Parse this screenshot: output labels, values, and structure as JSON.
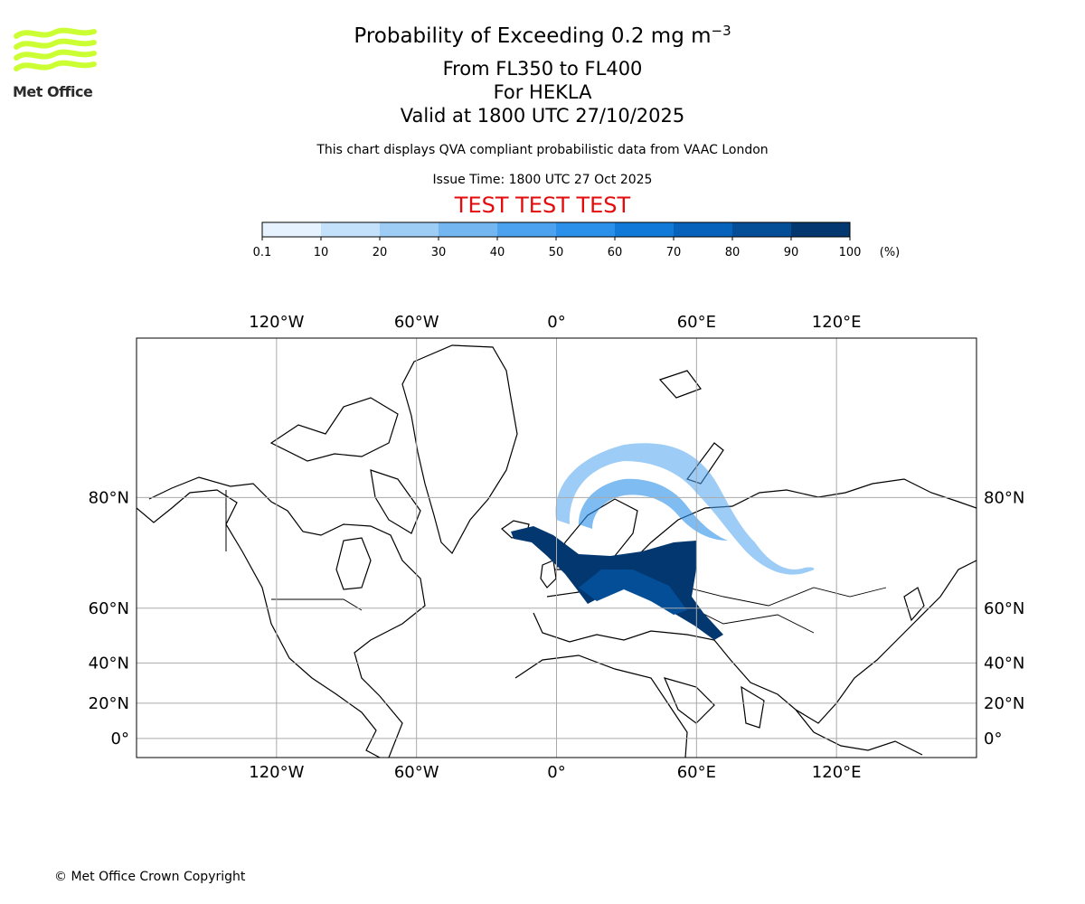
{
  "header": {
    "title_main": "Probability of Exceeding 0.2 mg m",
    "title_sup": "−3",
    "flight_levels": "From FL350 to FL400",
    "volcano": "For HEKLA",
    "valid": "Valid at 1800 UTC 27/10/2025",
    "note": "This chart displays QVA compliant probabilistic data from VAAC London",
    "issue_time": "Issue Time: 1800 UTC 27 Oct 2025",
    "test_banner": "TEST TEST TEST"
  },
  "logo": {
    "text": "Met Office",
    "color": "#ccff33"
  },
  "footer": {
    "copyright": "© Met Office Crown Copyright"
  },
  "legend": {
    "unit": "(%)",
    "ticks": [
      "0.1",
      "10",
      "20",
      "30",
      "40",
      "50",
      "60",
      "70",
      "80",
      "90",
      "100"
    ],
    "colors": [
      "#e6f2ff",
      "#c3e1fb",
      "#9dcdf5",
      "#74b6f0",
      "#4ca2ee",
      "#2a90ea",
      "#117ad8",
      "#0662bb",
      "#034e96",
      "#023770"
    ]
  },
  "map": {
    "lon_ticks_top": [
      "120°W",
      "60°W",
      "0°",
      "60°E",
      "120°E"
    ],
    "lon_ticks_bottom": [
      "120°W",
      "60°W",
      "0°",
      "60°E",
      "120°E"
    ],
    "lat_ticks_left": [
      "80°N",
      "60°N",
      "40°N",
      "20°N",
      "0°"
    ],
    "lat_ticks_right": [
      "80°N",
      "60°N",
      "40°N",
      "20°N",
      "0°"
    ]
  },
  "chart_data": {
    "type": "heatmap",
    "title": "Probability of Exceeding 0.2 mg m−3",
    "variable": "probability of ash concentration exceedance",
    "units": "%",
    "color_levels": [
      0.1,
      10,
      20,
      30,
      40,
      50,
      60,
      70,
      80,
      90,
      100
    ],
    "projection": "Mercator",
    "lon_range": [
      -180,
      180
    ],
    "lat_range": [
      -10,
      88
    ],
    "features": [
      {
        "name": "ash-plume-core",
        "probability_band": "90-100",
        "region": "Iceland to Scandinavia, Baltic and southern Russia"
      },
      {
        "name": "ash-plume-fringe",
        "probability_band": "0.1-60",
        "region": "Norwegian Sea, Arctic Ocean coast to western Siberia"
      }
    ]
  }
}
